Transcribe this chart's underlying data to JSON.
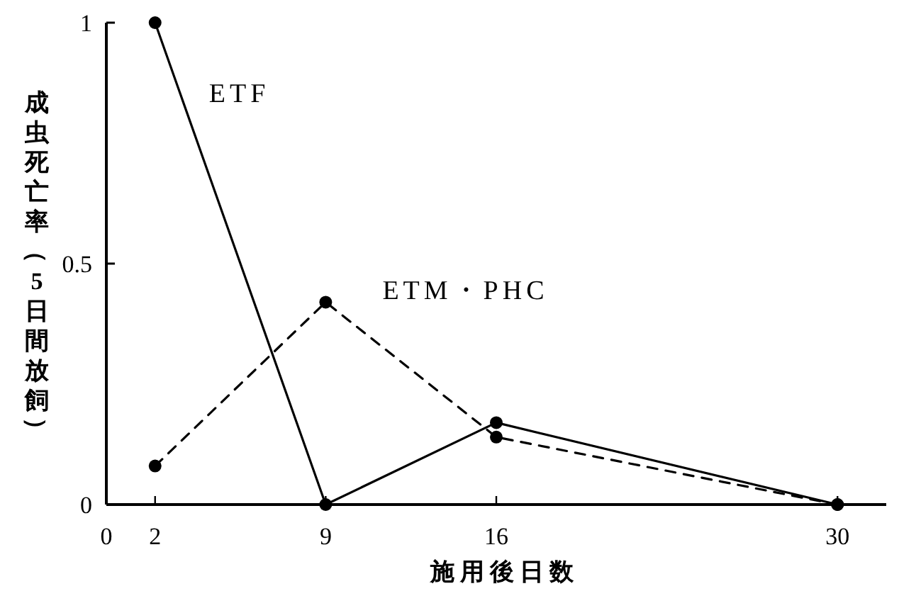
{
  "chart_data": {
    "type": "line",
    "xlabel": "施用後日数",
    "ylabel": "成虫死亡率（5日間放飼）",
    "x": [
      2,
      9,
      16,
      30
    ],
    "xlim": [
      0,
      32
    ],
    "xticks": [
      0,
      2,
      9,
      16,
      30
    ],
    "ylim": [
      0,
      1
    ],
    "yticks": [
      0,
      0.5,
      1
    ],
    "marker": "circle",
    "grid": false,
    "series": [
      {
        "name": "ETF",
        "color": "#000000",
        "line_style": "solid",
        "values": [
          1,
          0,
          0.17,
          0
        ]
      },
      {
        "name": "ETM・PHC",
        "color": "#000000",
        "line_style": "dashed",
        "values": [
          0.08,
          0.42,
          0.14,
          0
        ]
      }
    ]
  }
}
